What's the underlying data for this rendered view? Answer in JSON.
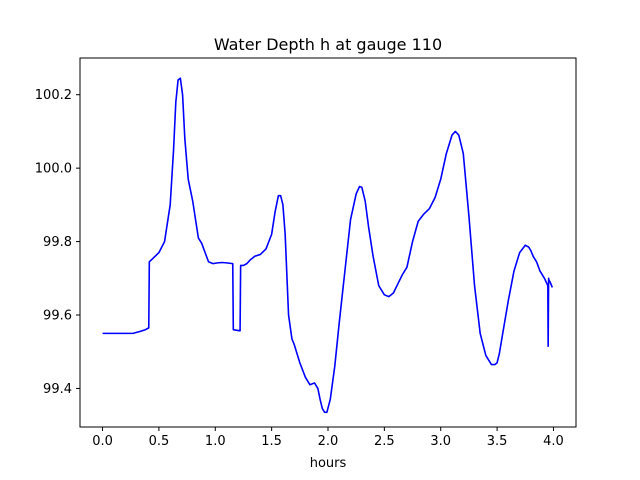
{
  "chart_data": {
    "type": "line",
    "title": "Water Depth h at gauge 110",
    "xlabel": "hours",
    "ylabel": "",
    "xlim": [
      -0.2,
      4.2
    ],
    "ylim": [
      99.295,
      100.3
    ],
    "x_ticks": [
      0.0,
      0.5,
      1.0,
      1.5,
      2.0,
      2.5,
      3.0,
      3.5,
      4.0
    ],
    "x_tick_labels": [
      "0.0",
      "0.5",
      "1.0",
      "1.5",
      "2.0",
      "2.5",
      "3.0",
      "3.5",
      "4.0"
    ],
    "y_ticks": [
      99.4,
      99.6,
      99.8,
      100.0,
      100.2
    ],
    "y_tick_labels": [
      "99.4",
      "99.6",
      "99.8",
      "100.0",
      "100.2"
    ],
    "grid": false,
    "legend": "none",
    "series": [
      {
        "color": "#0000ff",
        "x": [
          0.0,
          0.1,
          0.2,
          0.27,
          0.33,
          0.38,
          0.41,
          0.415,
          0.45,
          0.5,
          0.55,
          0.6,
          0.63,
          0.65,
          0.67,
          0.69,
          0.71,
          0.73,
          0.76,
          0.8,
          0.83,
          0.85,
          0.88,
          0.91,
          0.94,
          0.98,
          1.02,
          1.06,
          1.1,
          1.155,
          1.16,
          1.2,
          1.22,
          1.225,
          1.25,
          1.28,
          1.31,
          1.35,
          1.4,
          1.45,
          1.5,
          1.53,
          1.56,
          1.58,
          1.6,
          1.62,
          1.65,
          1.68,
          1.7,
          1.72,
          1.75,
          1.8,
          1.84,
          1.88,
          1.91,
          1.93,
          1.95,
          1.97,
          1.99,
          2.02,
          2.06,
          2.1,
          2.15,
          2.2,
          2.25,
          2.28,
          2.3,
          2.33,
          2.36,
          2.4,
          2.45,
          2.5,
          2.54,
          2.58,
          2.62,
          2.66,
          2.7,
          2.75,
          2.8,
          2.85,
          2.9,
          2.95,
          3.0,
          3.05,
          3.1,
          3.13,
          3.16,
          3.2,
          3.25,
          3.3,
          3.35,
          3.4,
          3.45,
          3.48,
          3.5,
          3.52,
          3.55,
          3.6,
          3.65,
          3.7,
          3.75,
          3.78,
          3.8,
          3.82,
          3.85,
          3.88,
          3.92,
          3.95,
          3.953,
          3.957,
          3.96,
          3.97,
          3.99
        ],
        "y": [
          99.55,
          99.55,
          99.55,
          99.55,
          99.555,
          99.56,
          99.565,
          99.745,
          99.755,
          99.77,
          99.8,
          99.9,
          100.05,
          100.18,
          100.24,
          100.245,
          100.2,
          100.08,
          99.97,
          99.91,
          99.85,
          99.81,
          99.795,
          99.77,
          99.745,
          99.74,
          99.742,
          99.743,
          99.742,
          99.74,
          99.56,
          99.558,
          99.557,
          99.735,
          99.735,
          99.74,
          99.75,
          99.76,
          99.765,
          99.78,
          99.82,
          99.88,
          99.925,
          99.925,
          99.9,
          99.82,
          99.6,
          99.535,
          99.52,
          99.5,
          99.47,
          99.43,
          99.41,
          99.415,
          99.4,
          99.37,
          99.345,
          99.335,
          99.335,
          99.37,
          99.46,
          99.58,
          99.72,
          99.86,
          99.93,
          99.95,
          99.948,
          99.91,
          99.84,
          99.76,
          99.68,
          99.655,
          99.65,
          99.66,
          99.685,
          99.71,
          99.73,
          99.8,
          99.855,
          99.875,
          99.89,
          99.92,
          99.97,
          100.04,
          100.09,
          100.1,
          100.09,
          100.04,
          99.87,
          99.68,
          99.55,
          99.49,
          99.465,
          99.465,
          99.47,
          99.495,
          99.55,
          99.64,
          99.72,
          99.77,
          99.79,
          99.785,
          99.775,
          99.76,
          99.745,
          99.72,
          99.7,
          99.68,
          99.515,
          99.7,
          99.695,
          99.69,
          99.675
        ]
      }
    ]
  }
}
